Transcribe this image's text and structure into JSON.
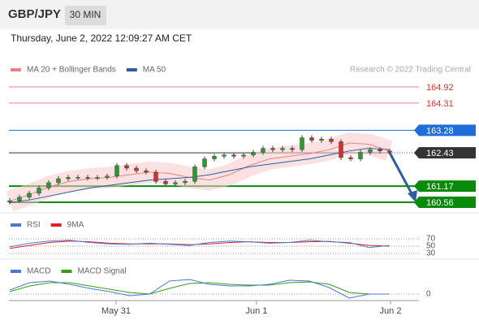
{
  "header": {
    "pair": "GBP/JPY",
    "timeframe": "30 MIN",
    "timestamp": "Thursday, June 2, 2022 12:09:27 AM CET"
  },
  "price": {
    "legend": [
      {
        "name": "MA 20 + Bollinger Bands",
        "color": "#f08080"
      },
      {
        "name": "MA 50",
        "color": "#2c5f9e"
      }
    ],
    "credit": "Research © 2022 Trading Central",
    "ylim": [
      160.56,
      164.92
    ],
    "levels": [
      {
        "value": 164.92,
        "color": "#e03030",
        "style": "text"
      },
      {
        "value": 164.31,
        "color": "#e03030",
        "style": "text"
      },
      {
        "value": 163.28,
        "color": "#1e6fd9",
        "style": "box"
      },
      {
        "value": 162.43,
        "color": "#333333",
        "style": "box"
      },
      {
        "value": 161.17,
        "color": "#0a8a0a",
        "style": "box"
      },
      {
        "value": 160.56,
        "color": "#0a8a0a",
        "style": "box"
      }
    ],
    "closes": [
      160.62,
      160.75,
      160.9,
      161.1,
      161.3,
      161.45,
      161.5,
      161.5,
      161.48,
      161.5,
      161.55,
      161.95,
      161.85,
      161.75,
      161.7,
      161.35,
      161.25,
      161.3,
      161.35,
      161.9,
      162.2,
      162.3,
      162.35,
      162.3,
      162.35,
      162.45,
      162.6,
      162.55,
      162.6,
      162.55,
      163.0,
      162.9,
      162.95,
      162.85,
      162.25,
      162.2,
      162.45,
      162.55,
      162.5,
      162.45
    ],
    "ma20": [
      160.6,
      160.85,
      161.15,
      161.35,
      161.45,
      161.5,
      161.6,
      161.7,
      161.65,
      161.5,
      161.4,
      161.6,
      161.95,
      162.2,
      162.3,
      162.4,
      162.55,
      162.8,
      162.75,
      162.5
    ],
    "ma50": [
      160.55,
      160.65,
      160.8,
      160.95,
      161.1,
      161.2,
      161.3,
      161.4,
      161.45,
      161.5,
      161.6,
      161.75,
      161.9,
      162.0,
      162.1,
      162.2,
      162.35,
      162.5,
      162.6,
      162.55
    ]
  },
  "rsi": {
    "legend": [
      {
        "name": "RSI",
        "color": "#4a78d4"
      },
      {
        "name": "9MA",
        "color": "#e02020"
      }
    ],
    "ylim": [
      30,
      70
    ],
    "yticks": [
      70,
      50,
      30
    ],
    "values": [
      48,
      58,
      64,
      66,
      60,
      56,
      55,
      58,
      55,
      52,
      60,
      64,
      62,
      58,
      60,
      66,
      62,
      60,
      46,
      52
    ],
    "ma": [
      44,
      52,
      60,
      64,
      62,
      58,
      56,
      56,
      56,
      54,
      56,
      60,
      62,
      60,
      60,
      62,
      63,
      58,
      52,
      50
    ]
  },
  "macd": {
    "legend": [
      {
        "name": "MACD",
        "color": "#4a78d4"
      },
      {
        "name": "MACD Signal",
        "color": "#3a9a1a"
      }
    ],
    "yticks": [
      0
    ],
    "ylim": [
      -0.15,
      0.25
    ],
    "values": [
      0.05,
      0.14,
      0.16,
      0.12,
      0.07,
      0.03,
      -0.02,
      0.0,
      0.16,
      0.18,
      0.12,
      0.1,
      0.1,
      0.12,
      0.17,
      0.16,
      0.08,
      -0.05,
      0.0,
      0.0
    ],
    "signal": [
      0.03,
      0.1,
      0.14,
      0.14,
      0.1,
      0.06,
      0.02,
      0.0,
      0.07,
      0.13,
      0.14,
      0.12,
      0.11,
      0.11,
      0.14,
      0.15,
      0.12,
      0.02,
      0.0,
      0.0
    ]
  },
  "dates": [
    "May 31",
    "Jun 1",
    "Jun 2"
  ]
}
